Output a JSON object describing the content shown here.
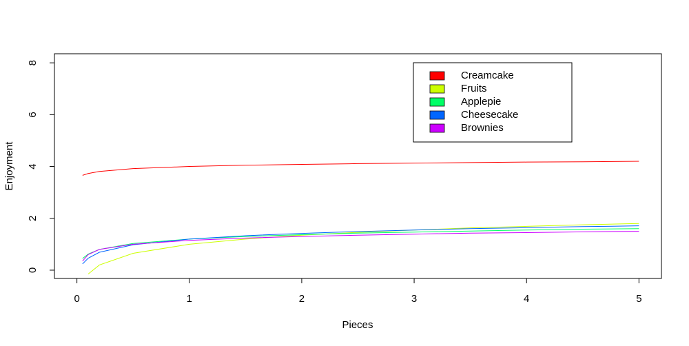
{
  "chart_data": {
    "type": "line",
    "xlabel": "Pieces",
    "ylabel": "Enjoyment",
    "x": [
      0.05,
      0.1,
      0.2,
      0.5,
      1,
      1.5,
      2,
      2.5,
      3,
      3.5,
      4,
      4.5,
      5
    ],
    "series": [
      {
        "name": "Creamcake",
        "color": "#ff0000",
        "values": [
          3.66,
          3.73,
          3.81,
          3.92,
          4,
          4.05,
          4.08,
          4.11,
          4.13,
          4.15,
          4.17,
          4.18,
          4.2
        ]
      },
      {
        "name": "Fruits",
        "color": "#ccff00",
        "values": [
          null,
          -0.15,
          0.2,
          0.65,
          1,
          1.2,
          1.35,
          1.46,
          1.55,
          1.63,
          1.69,
          1.75,
          1.8
        ]
      },
      {
        "name": "Applepie",
        "color": "#00ff66",
        "values": [
          0.45,
          0.62,
          0.8,
          1.03,
          1.2,
          1.3,
          1.37,
          1.43,
          1.47,
          1.51,
          1.55,
          1.58,
          1.6
        ]
      },
      {
        "name": "Cheesecake",
        "color": "#0066ff",
        "values": [
          0.24,
          0.46,
          0.69,
          0.98,
          1.2,
          1.33,
          1.42,
          1.49,
          1.55,
          1.6,
          1.64,
          1.68,
          1.71
        ]
      },
      {
        "name": "Brownies",
        "color": "#cc00ff",
        "values": [
          0.35,
          0.6,
          0.8,
          1,
          1.15,
          1.24,
          1.3,
          1.35,
          1.39,
          1.43,
          1.45,
          1.48,
          1.5
        ]
      }
    ],
    "xlim": [
      -0.2,
      5.2
    ],
    "ylim": [
      -0.32,
      8.35
    ],
    "xticks": [
      0,
      1,
      2,
      3,
      4,
      5
    ],
    "yticks": [
      0,
      2,
      4,
      6,
      8
    ],
    "legend": "top-right"
  }
}
